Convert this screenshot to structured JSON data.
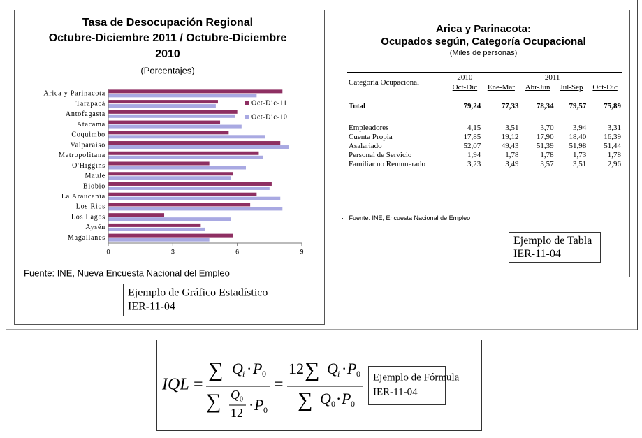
{
  "chart_data": {
    "type": "barh",
    "title": [
      "Tasa de Desocupación Regional",
      "Octubre-Diciembre 2011 / Octubre-Diciembre",
      "2010"
    ],
    "subtitle": "(Porcentajes)",
    "categories": [
      "Arica y Parinacota",
      "Tarapacá",
      "Antofagasta",
      "Atacama",
      "Coquimbo",
      "Valparaiso",
      "Metropolitana",
      "O'Higgins",
      "Maule",
      "Biobio",
      "La Araucanía",
      "Los Rios",
      "Los Lagos",
      "Aysén",
      "Magallanes"
    ],
    "series": [
      {
        "name": "Oct-Dic-11",
        "color": "#8e2f62",
        "values": [
          8.1,
          5.1,
          6.0,
          5.2,
          5.6,
          8.0,
          7.0,
          4.7,
          5.8,
          7.6,
          6.9,
          6.6,
          2.6,
          4.3,
          5.8
        ]
      },
      {
        "name": "Oct-Dic-10",
        "color": "#a9a9e2",
        "values": [
          6.9,
          5.0,
          5.9,
          6.2,
          7.3,
          8.4,
          7.2,
          6.4,
          5.7,
          7.5,
          8.0,
          8.1,
          5.7,
          4.5,
          4.7
        ]
      }
    ],
    "xlim": [
      0,
      9
    ],
    "xticks": [
      0,
      3,
      6,
      9
    ],
    "grid": false,
    "legend": "upper right",
    "source": "Fuente: INE, Nueva Encuesta Nacional del Empleo",
    "caption": [
      "Ejemplo de Gráfico Estadístico",
      "IER-11-04"
    ]
  },
  "table": {
    "title": [
      "Arica y Parinacota:",
      "Ocupados según, Categoría Ocupacional"
    ],
    "subtitle": "(Miles de personas)",
    "header": {
      "label": "Categoría Ocupacional",
      "years": [
        "2010",
        "2011"
      ],
      "periods": [
        "Oct-Dic",
        "Ene-Mar",
        "Abr-Jun",
        "Jul-Sep",
        "Oct-Dic"
      ]
    },
    "rows": [
      [
        "Total",
        "79,24",
        "77,33",
        "78,34",
        "79,57",
        "75,89"
      ],
      [
        "Empleadores",
        "4,15",
        "3,51",
        "3,70",
        "3,94",
        "3,31"
      ],
      [
        "Cuenta Propia",
        "17,85",
        "19,12",
        "17,90",
        "18,40",
        "16,39"
      ],
      [
        "Asalariado",
        "52,07",
        "49,43",
        "51,39",
        "51,98",
        "51,44"
      ],
      [
        "Personal de Servicio",
        "1,94",
        "1,78",
        "1,78",
        "1,73",
        "1,78"
      ],
      [
        "Familiar no Remunerado",
        "3,23",
        "3,49",
        "3,57",
        "3,51",
        "2,96"
      ]
    ],
    "source": "Fuente: INE,  Encuesta Nacional de Empleo",
    "caption": [
      "Ejemplo  de Tabla",
      "IER-11-04"
    ]
  },
  "formula": {
    "glyphs": {
      "lhs": "IQL",
      "eq": "=",
      "sum": "∑",
      "Q": "Q",
      "i": "i",
      "dot": "·",
      "P": "P",
      "zero": "0",
      "twelve": "12"
    },
    "caption": [
      "Ejemplo de Fórmula",
      "IER-11-04"
    ]
  }
}
